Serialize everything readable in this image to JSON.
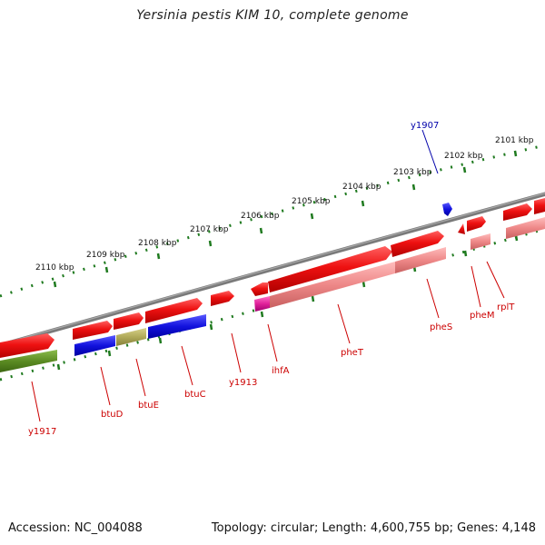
{
  "title": "Yersinia pestis KIM 10, complete genome",
  "footer": {
    "accession": "Accession: NC_004088",
    "summary": "Topology: circular; Length: 4,600,755 bp; Genes: 4,148"
  },
  "colors": {
    "backbone": "#7a7a7a",
    "tick": "#1f7a1f",
    "gene_red": "#ee1111",
    "gene_pink": "#ee8888",
    "gene_blue": "#1111dd",
    "gene_olive": "#b0aa5a",
    "gene_green": "#5a8a22",
    "gene_magenta": "#e0209a",
    "label_red": "#cc0000",
    "label_blue": "#0000aa"
  },
  "ruler": [
    {
      "label": "2110 kbp"
    },
    {
      "label": "2109 kbp"
    },
    {
      "label": "2108 kbp"
    },
    {
      "label": "2107 kbp"
    },
    {
      "label": "2106 kbp"
    },
    {
      "label": "2105 kbp"
    },
    {
      "label": "2104 kbp"
    },
    {
      "label": "2103 kbp"
    },
    {
      "label": "2102 kbp"
    },
    {
      "label": "2101 kbp"
    }
  ],
  "genes": [
    {
      "name": "y1917"
    },
    {
      "name": "btuD"
    },
    {
      "name": "btuE"
    },
    {
      "name": "btuC"
    },
    {
      "name": "y1913"
    },
    {
      "name": "ihfA"
    },
    {
      "name": "pheT"
    },
    {
      "name": "pheS"
    },
    {
      "name": "pheM"
    },
    {
      "name": "rplT"
    },
    {
      "name": "y1907"
    }
  ]
}
